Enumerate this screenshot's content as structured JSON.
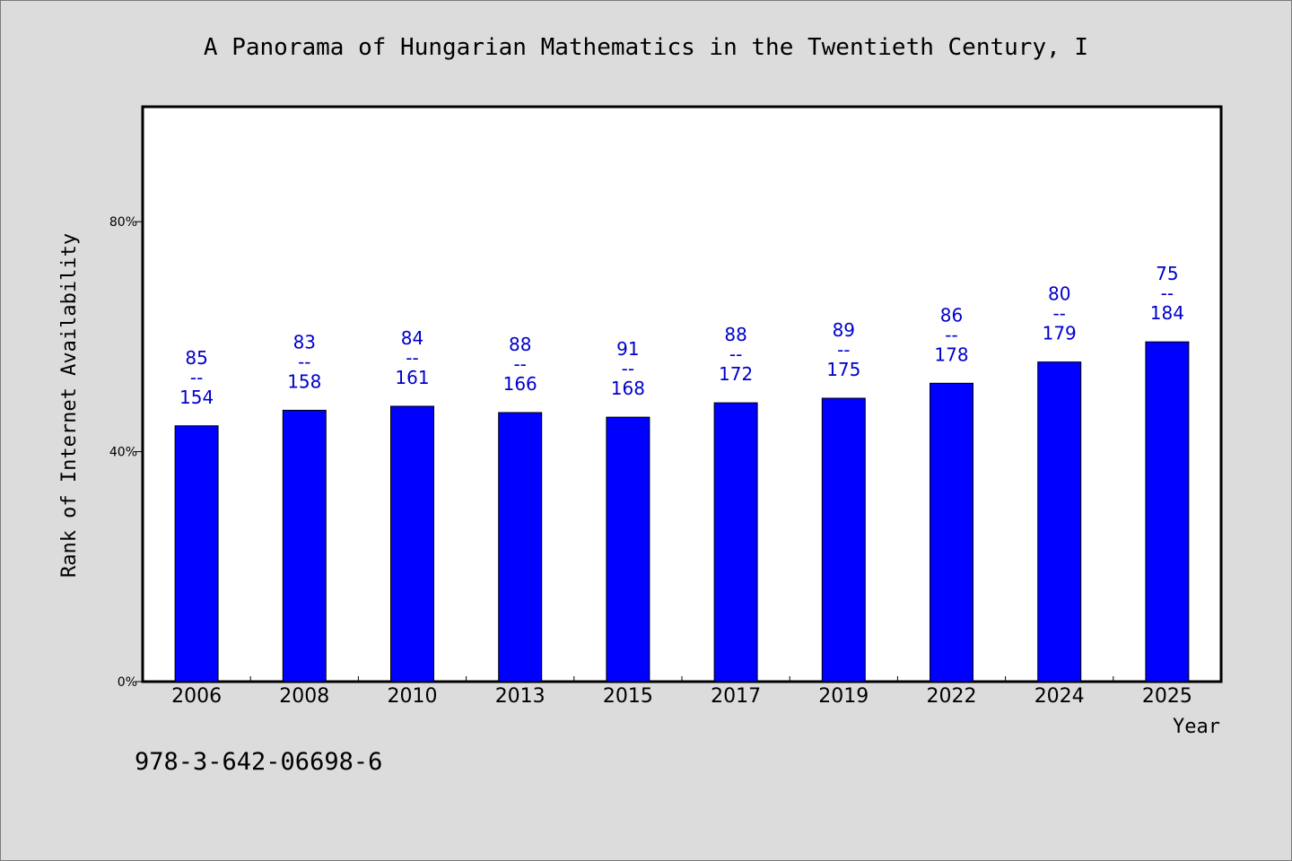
{
  "footer": {
    "isbn": "978-3-642-06698-6"
  },
  "colors": {
    "bar": "#0000ff",
    "label": "#0000cc",
    "background": "#dcdcdc",
    "plot_background": "#ffffff"
  },
  "chart_data": {
    "type": "bar",
    "title": "A Panorama of Hungarian Mathematics in the Twentieth Century, I",
    "xlabel": "Year",
    "ylabel": "Rank of Internet Availability",
    "categories": [
      "2006",
      "2008",
      "2010",
      "2013",
      "2015",
      "2017",
      "2019",
      "2022",
      "2024",
      "2025"
    ],
    "values": [
      44.5,
      47.2,
      47.9,
      46.8,
      46.0,
      48.5,
      49.3,
      51.9,
      55.6,
      59.1
    ],
    "value_unit": "%",
    "data_labels": [
      {
        "top": "85",
        "sep": "--",
        "bottom": "154"
      },
      {
        "top": "83",
        "sep": "--",
        "bottom": "158"
      },
      {
        "top": "84",
        "sep": "--",
        "bottom": "161"
      },
      {
        "top": "88",
        "sep": "--",
        "bottom": "166"
      },
      {
        "top": "91",
        "sep": "--",
        "bottom": "168"
      },
      {
        "top": "88",
        "sep": "--",
        "bottom": "172"
      },
      {
        "top": "89",
        "sep": "--",
        "bottom": "175"
      },
      {
        "top": "86",
        "sep": "--",
        "bottom": "178"
      },
      {
        "top": "80",
        "sep": "--",
        "bottom": "179"
      },
      {
        "top": "75",
        "sep": "--",
        "bottom": "184"
      }
    ],
    "ylim": [
      0,
      100
    ],
    "yticks": [
      0,
      40,
      80
    ],
    "ytick_labels": [
      "0%",
      "40%",
      "80%"
    ],
    "grid": false,
    "legend": "none"
  }
}
